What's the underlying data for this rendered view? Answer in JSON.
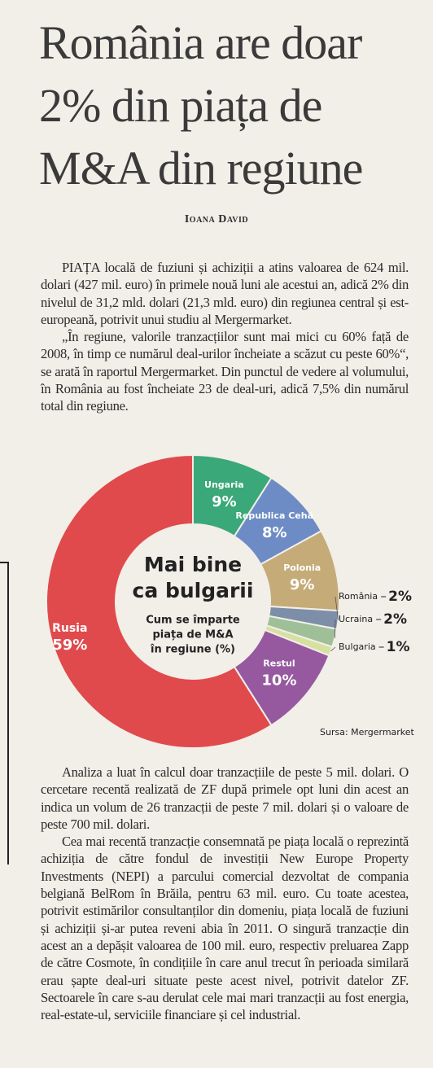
{
  "header": {
    "title": [
      "România are doar",
      "2% din piața de",
      "M&A din regiune"
    ],
    "byline": "Ioana David"
  },
  "body": {
    "paragraphs_before": [
      "PIAȚA locală de fuziuni și achiziții a atins valoarea de 624 mil. dolari (427 mil. euro) în primele nouă luni ale acestui an, adică 2% din nivelul de 31,2 mld. dolari (21,3 mld. euro) din regiunea central și est-europeană, potrivit unui studiu al Mergermarket.",
      "„În regiune, valorile tranzacțiilor sunt mai mici cu 60% față de 2008, în timp ce numărul deal-urilor încheiate a scăzut cu peste 60%“, se arată în raportul Mergermarket. Din punctul de vedere al volumului, în România au fost încheiate 23 de deal-uri, adică 7,5% din numărul total din regiune."
    ],
    "paragraphs_after": [
      "Analiza a luat în calcul doar tranzacțiile de peste 5 mil. dolari. O cercetare recentă realizată de ZF după primele opt luni din acest an indica un volum de 26 tranzacții de peste 7 mil. dolari și o valoare de peste 700 mil. dolari.",
      "Cea mai recentă tranzacție consemnată pe piața locală o reprezintă achiziția de către fondul de investiții New Europe Property Investments (NEPI) a parcului comercial dezvoltat de compania belgiană BelRom în Brăila, pentru 63 mil. euro. Cu toate acestea, potrivit estimărilor consultanților din domeniu, piața locală de fuziuni și achiziții și-ar putea reveni abia în 2011. O singură tranzacție din acest an a depășit valoarea de 100 mil. euro, respectiv preluarea Zapp de către Cosmote, în condițiile în care anul trecut în perioada similară erau șapte deal-uri situate peste acest nivel, potrivit datelor ZF. Sectoarele în care s-au derulat cele mai mari tranzacții au fost energia, real-estate-ul, serviciile financiare și cel industrial."
    ]
  },
  "chart_data": {
    "type": "donut",
    "title": [
      "Mai bine",
      "ca bulgarii"
    ],
    "subtitle": [
      "Cum se împarte",
      "piața de M&A",
      "în regiune (%)"
    ],
    "categories": [
      "Ungaria",
      "Republica Cehă",
      "Polonia",
      "România",
      "Ucraina",
      "Bulgaria",
      "Restul",
      "Rusia"
    ],
    "values": [
      9,
      8,
      9,
      2,
      2,
      1,
      10,
      59
    ],
    "value_labels": [
      "9%",
      "8%",
      "9%",
      "2%",
      "2%",
      "1%",
      "10%",
      "59%"
    ],
    "colors": [
      "#3aa878",
      "#6d8cc6",
      "#c5ab78",
      "#7d8ea8",
      "#9fbf98",
      "#d6e0a0",
      "#9659a0",
      "#e04a4c"
    ],
    "source": "Sursa: Mergermarket"
  }
}
